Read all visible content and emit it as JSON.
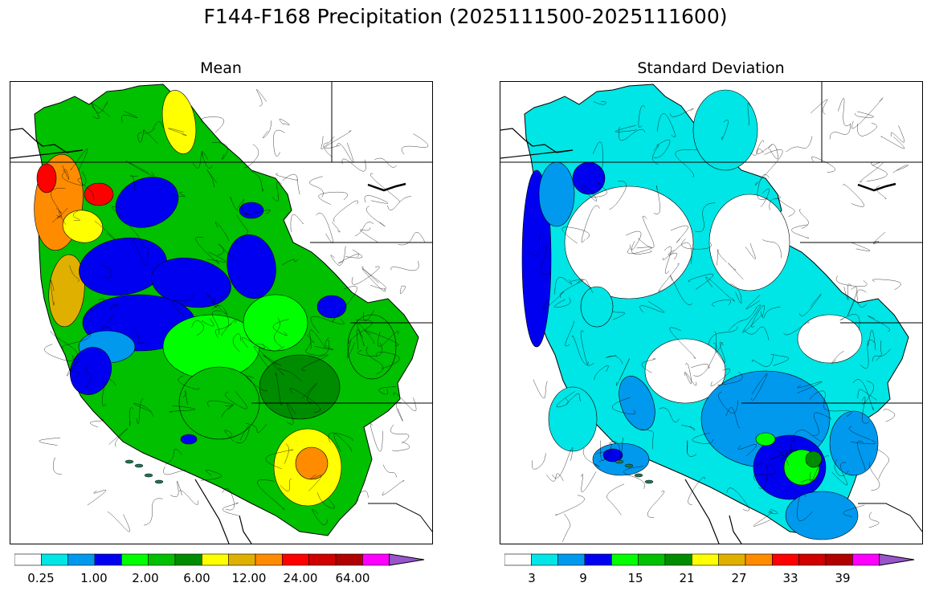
{
  "figure": {
    "title": "F144-F168 Precipitation (2025111500-2025111600)"
  },
  "panels": [
    {
      "title": "Mean"
    },
    {
      "title": "Standard Deviation"
    }
  ],
  "colors": {
    "palette": [
      "#ffffff",
      "#00e5e5",
      "#0099ee",
      "#0000f0",
      "#00ff00",
      "#00c000",
      "#008c00",
      "#ffff00",
      "#e0b000",
      "#ff8c00",
      "#ff0000",
      "#d00000",
      "#b00000",
      "#ff00ff",
      "#9955cc"
    ],
    "outline": "#000000",
    "boundary": "#000000"
  },
  "colorbars": [
    {
      "tick_labels": [
        "0.25",
        "1.00",
        "2.00",
        "6.00",
        "12.00",
        "24.00",
        "64.00"
      ]
    },
    {
      "tick_labels": [
        "3",
        "9",
        "15",
        "21",
        "27",
        "33",
        "39"
      ]
    }
  ]
}
